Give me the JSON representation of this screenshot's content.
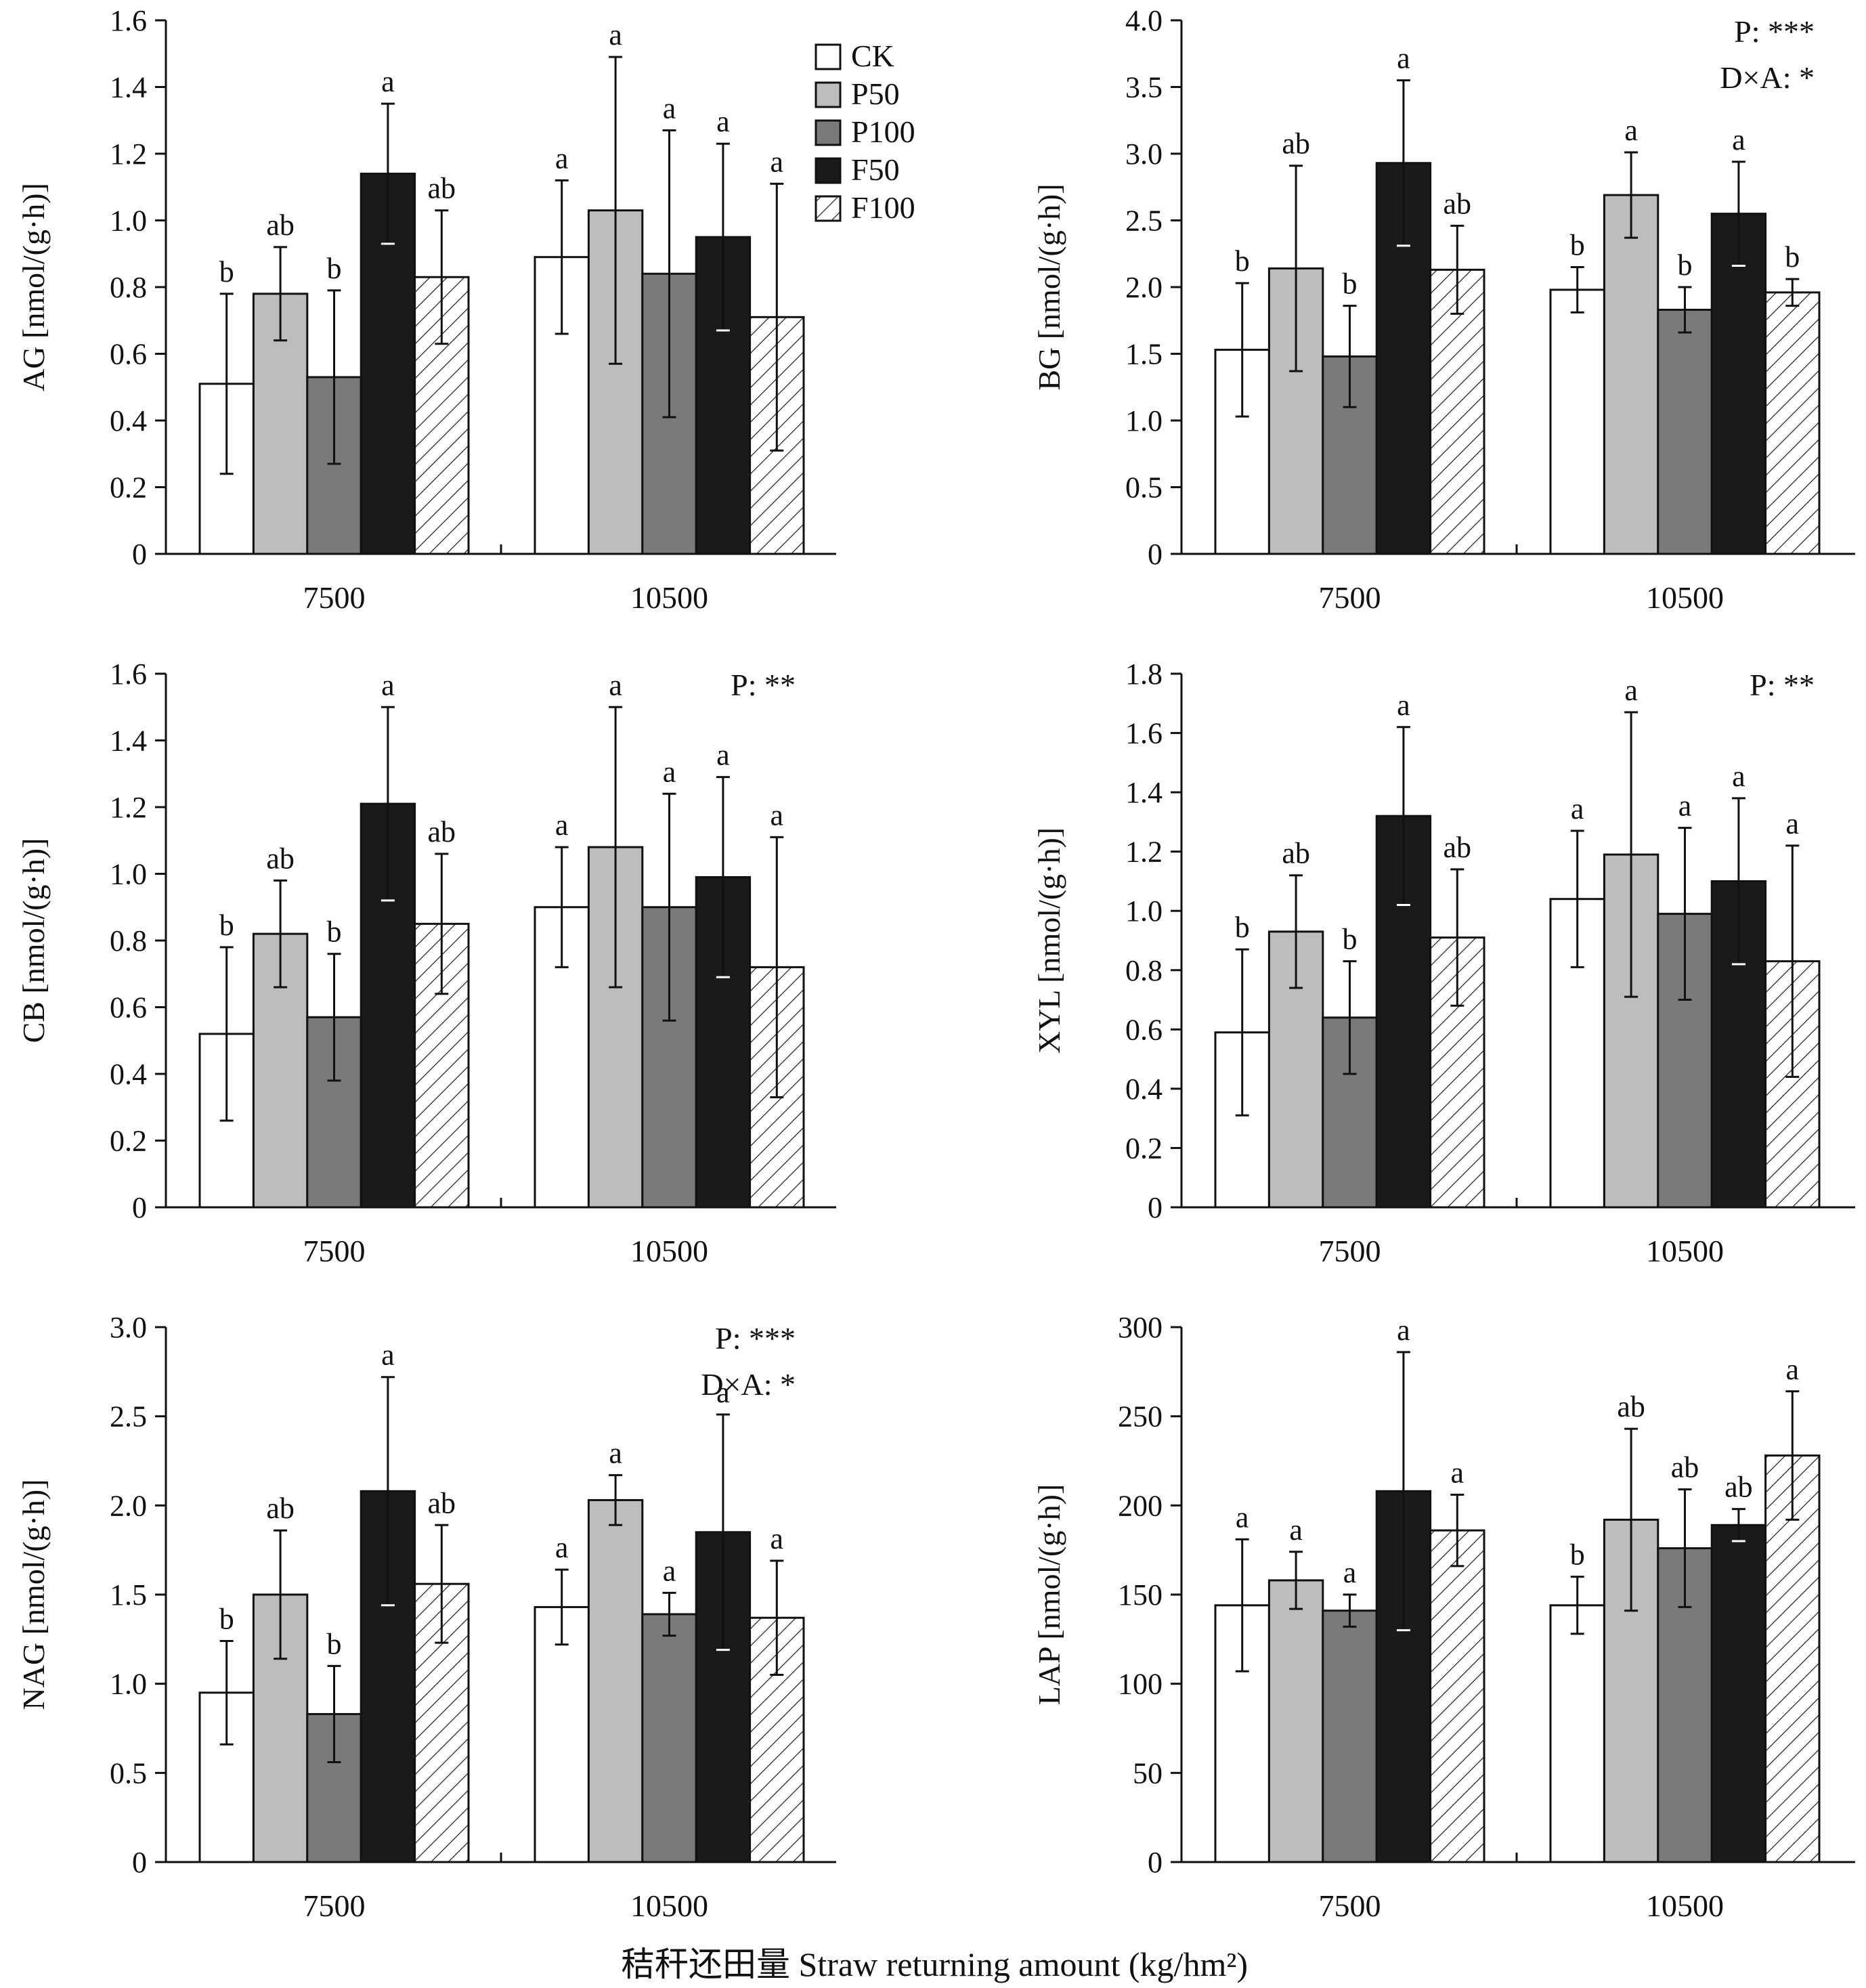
{
  "figure": {
    "x_caption": "秸秆还田量 Straw returning amount (kg/hm²)",
    "legend": [
      {
        "name": "CK",
        "fill": "#ffffff",
        "pattern": "none"
      },
      {
        "name": "P50",
        "fill": "#bdbdbd",
        "pattern": "none"
      },
      {
        "name": "P100",
        "fill": "#7a7a7a",
        "pattern": "none"
      },
      {
        "name": "F50",
        "fill": "#1a1a1a",
        "pattern": "none"
      },
      {
        "name": "F100",
        "fill": "#ffffff",
        "pattern": "hatch"
      }
    ]
  },
  "chart_data": [
    {
      "type": "bar",
      "ylabel": "AG [nmol/(g·h)]",
      "categories": [
        "7500",
        "10500"
      ],
      "ylim": [
        0,
        1.6
      ],
      "yticks": [
        "0",
        "0.2",
        "0.4",
        "0.6",
        "0.8",
        "1.0",
        "1.2",
        "1.4",
        "1.6"
      ],
      "series": [
        {
          "name": "CK",
          "values": [
            0.51,
            0.89
          ],
          "err": [
            0.27,
            0.23
          ],
          "letters": [
            "b",
            "a"
          ]
        },
        {
          "name": "P50",
          "values": [
            0.78,
            1.03
          ],
          "err": [
            0.14,
            0.46
          ],
          "letters": [
            "ab",
            "a"
          ]
        },
        {
          "name": "P100",
          "values": [
            0.53,
            0.84
          ],
          "err": [
            0.26,
            0.43
          ],
          "letters": [
            "b",
            "a"
          ]
        },
        {
          "name": "F50",
          "values": [
            1.14,
            0.95
          ],
          "err": [
            0.21,
            0.28
          ],
          "letters": [
            "a",
            "a"
          ]
        },
        {
          "name": "F100",
          "values": [
            0.83,
            0.71
          ],
          "err": [
            0.2,
            0.4
          ],
          "letters": [
            "ab",
            "a"
          ]
        }
      ],
      "annotations": [],
      "show_legend": true
    },
    {
      "type": "bar",
      "ylabel": "BG [nmol/(g·h)]",
      "categories": [
        "7500",
        "10500"
      ],
      "ylim": [
        0,
        4.0
      ],
      "yticks": [
        "0",
        "0.5",
        "1.0",
        "1.5",
        "2.0",
        "2.5",
        "3.0",
        "3.5",
        "4.0"
      ],
      "series": [
        {
          "name": "CK",
          "values": [
            1.53,
            1.98
          ],
          "err": [
            0.5,
            0.17
          ],
          "letters": [
            "b",
            "b"
          ]
        },
        {
          "name": "P50",
          "values": [
            2.14,
            2.69
          ],
          "err": [
            0.77,
            0.32
          ],
          "letters": [
            "ab",
            "a"
          ]
        },
        {
          "name": "P100",
          "values": [
            1.48,
            1.83
          ],
          "err": [
            0.38,
            0.17
          ],
          "letters": [
            "b",
            "b"
          ]
        },
        {
          "name": "F50",
          "values": [
            2.93,
            2.55
          ],
          "err": [
            0.62,
            0.39
          ],
          "letters": [
            "a",
            "a"
          ]
        },
        {
          "name": "F100",
          "values": [
            2.13,
            1.96
          ],
          "err": [
            0.33,
            0.1
          ],
          "letters": [
            "ab",
            "b"
          ]
        }
      ],
      "annotations": [
        "P: ***",
        "D×A: *"
      ],
      "show_legend": false
    },
    {
      "type": "bar",
      "ylabel": "CB [nmol/(g·h)]",
      "categories": [
        "7500",
        "10500"
      ],
      "ylim": [
        0,
        1.6
      ],
      "yticks": [
        "0",
        "0.2",
        "0.4",
        "0.6",
        "0.8",
        "1.0",
        "1.2",
        "1.4",
        "1.6"
      ],
      "series": [
        {
          "name": "CK",
          "values": [
            0.52,
            0.9
          ],
          "err": [
            0.26,
            0.18
          ],
          "letters": [
            "b",
            "a"
          ]
        },
        {
          "name": "P50",
          "values": [
            0.82,
            1.08
          ],
          "err": [
            0.16,
            0.42
          ],
          "letters": [
            "ab",
            "a"
          ]
        },
        {
          "name": "P100",
          "values": [
            0.57,
            0.9
          ],
          "err": [
            0.19,
            0.34
          ],
          "letters": [
            "b",
            "a"
          ]
        },
        {
          "name": "F50",
          "values": [
            1.21,
            0.99
          ],
          "err": [
            0.29,
            0.3
          ],
          "letters": [
            "a",
            "a"
          ]
        },
        {
          "name": "F100",
          "values": [
            0.85,
            0.72
          ],
          "err": [
            0.21,
            0.39
          ],
          "letters": [
            "ab",
            "a"
          ]
        }
      ],
      "annotations": [
        "P: **"
      ],
      "show_legend": false
    },
    {
      "type": "bar",
      "ylabel": "XYL [nmol/(g·h)]",
      "categories": [
        "7500",
        "10500"
      ],
      "ylim": [
        0,
        1.8
      ],
      "yticks": [
        "0",
        "0.2",
        "0.4",
        "0.6",
        "0.8",
        "1.0",
        "1.2",
        "1.4",
        "1.6",
        "1.8"
      ],
      "series": [
        {
          "name": "CK",
          "values": [
            0.59,
            1.04
          ],
          "err": [
            0.28,
            0.23
          ],
          "letters": [
            "b",
            "a"
          ]
        },
        {
          "name": "P50",
          "values": [
            0.93,
            1.19
          ],
          "err": [
            0.19,
            0.48
          ],
          "letters": [
            "ab",
            "a"
          ]
        },
        {
          "name": "P100",
          "values": [
            0.64,
            0.99
          ],
          "err": [
            0.19,
            0.29
          ],
          "letters": [
            "b",
            "a"
          ]
        },
        {
          "name": "F50",
          "values": [
            1.32,
            1.1
          ],
          "err": [
            0.3,
            0.28
          ],
          "letters": [
            "a",
            "a"
          ]
        },
        {
          "name": "F100",
          "values": [
            0.91,
            0.83
          ],
          "err": [
            0.23,
            0.39
          ],
          "letters": [
            "ab",
            "a"
          ]
        }
      ],
      "annotations": [
        "P: **"
      ],
      "show_legend": false
    },
    {
      "type": "bar",
      "ylabel": "NAG [nmol/(g·h)]",
      "categories": [
        "7500",
        "10500"
      ],
      "ylim": [
        0,
        3.0
      ],
      "yticks": [
        "0",
        "0.5",
        "1.0",
        "1.5",
        "2.0",
        "2.5",
        "3.0"
      ],
      "series": [
        {
          "name": "CK",
          "values": [
            0.95,
            1.43
          ],
          "err": [
            0.29,
            0.21
          ],
          "letters": [
            "b",
            "a"
          ]
        },
        {
          "name": "P50",
          "values": [
            1.5,
            2.03
          ],
          "err": [
            0.36,
            0.14
          ],
          "letters": [
            "ab",
            "a"
          ]
        },
        {
          "name": "P100",
          "values": [
            0.83,
            1.39
          ],
          "err": [
            0.27,
            0.12
          ],
          "letters": [
            "b",
            "a"
          ]
        },
        {
          "name": "F50",
          "values": [
            2.08,
            1.85
          ],
          "err": [
            0.64,
            0.66
          ],
          "letters": [
            "a",
            "a"
          ]
        },
        {
          "name": "F100",
          "values": [
            1.56,
            1.37
          ],
          "err": [
            0.33,
            0.32
          ],
          "letters": [
            "ab",
            "a"
          ]
        }
      ],
      "annotations": [
        "P: ***",
        "D×A: *"
      ],
      "show_legend": false
    },
    {
      "type": "bar",
      "ylabel": "LAP [nmol/(g·h)]",
      "categories": [
        "7500",
        "10500"
      ],
      "ylim": [
        0,
        300
      ],
      "yticks": [
        "0",
        "50",
        "100",
        "150",
        "200",
        "250",
        "300"
      ],
      "series": [
        {
          "name": "CK",
          "values": [
            144,
            144
          ],
          "err": [
            37,
            16
          ],
          "letters": [
            "a",
            "b"
          ]
        },
        {
          "name": "P50",
          "values": [
            158,
            192
          ],
          "err": [
            16,
            51
          ],
          "letters": [
            "a",
            "ab"
          ]
        },
        {
          "name": "P100",
          "values": [
            141,
            176
          ],
          "err": [
            9,
            33
          ],
          "letters": [
            "a",
            "ab"
          ]
        },
        {
          "name": "F50",
          "values": [
            208,
            189
          ],
          "err": [
            78,
            9
          ],
          "letters": [
            "a",
            "ab"
          ]
        },
        {
          "name": "F100",
          "values": [
            186,
            228
          ],
          "err": [
            20,
            36
          ],
          "letters": [
            "a",
            "a"
          ]
        }
      ],
      "annotations": [],
      "show_legend": false
    }
  ]
}
